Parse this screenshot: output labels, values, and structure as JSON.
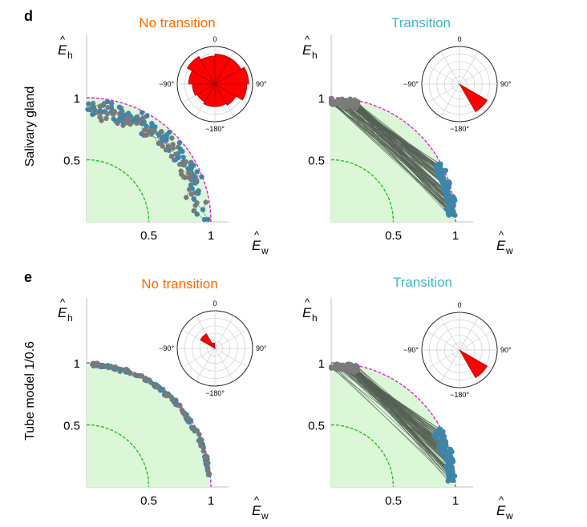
{
  "figure": {
    "rows": [
      {
        "letter": "d",
        "row_label": "Salivary gland"
      },
      {
        "letter": "e",
        "row_label": "Tube model 1/0.6"
      }
    ],
    "x_tick_labels": [
      "0.5",
      "1"
    ],
    "y_tick_labels": [
      "1",
      "0.5"
    ],
    "x_axis_symbol": "E",
    "x_axis_subscript": "w",
    "y_axis_symbol": "E",
    "y_axis_subscript": "h",
    "hat": "^",
    "polar_tick_labels": {
      "top": "0",
      "left": "−90°",
      "right": "90°",
      "bottom": "−180°"
    }
  },
  "colors": {
    "no_transition_title": "#ff6a00",
    "transition_title": "#44b3c2",
    "region_fill": "#dcf7d8",
    "inner_arc": "#21c020",
    "outer_arc": "#e020e0",
    "start_points": "#7a7a7a",
    "end_points": "#3e86a8",
    "links": "#556055",
    "rose": "#ff0000",
    "frame": "#bfbfbf"
  },
  "chart_data": [
    {
      "type": "scatter",
      "panel": "d-left",
      "title": "No transition",
      "title_color": "#ff6a00",
      "xlim": [
        0,
        1.15
      ],
      "ylim": [
        0,
        1.15
      ],
      "grid": false,
      "reference_curves": {
        "inner_quarter_circle_radius": 0.5,
        "outer_quarter_circle_radius": 1.0
      },
      "segments_from_gray_to_blue": true,
      "pair_count": 90,
      "distribution": "scattered near unit arc, many short links",
      "polar_histogram": {
        "angle_range_deg": [
          -180,
          180
        ],
        "bins_deg": [
          -180,
          -150,
          -120,
          -90,
          -60,
          -30,
          0,
          30,
          60,
          90,
          120,
          150
        ],
        "relative_counts": [
          0.6,
          0.55,
          0.6,
          0.7,
          0.85,
          0.75,
          0.8,
          0.8,
          0.9,
          0.85,
          0.65,
          0.6
        ]
      }
    },
    {
      "type": "scatter",
      "panel": "d-right",
      "title": "Transition",
      "title_color": "#44b3c2",
      "xlim": [
        0,
        1.15
      ],
      "ylim": [
        0,
        1.15
      ],
      "grid": false,
      "reference_curves": {
        "inner_quarter_circle_radius": 0.5,
        "outer_quarter_circle_radius": 1.0
      },
      "segments_from_gray_to_blue": true,
      "pair_count": 110,
      "distribution": "gray points near top-left of arc, blue points near lower-right of arc; long links",
      "polar_histogram": {
        "angle_range_deg": [
          -180,
          180
        ],
        "bins_deg": [
          120,
          150
        ],
        "relative_counts": [
          0.85,
          0.0
        ]
      }
    },
    {
      "type": "scatter",
      "panel": "e-left",
      "title": "No transition",
      "title_color": "#ff6a00",
      "xlim": [
        0,
        1.15
      ],
      "ylim": [
        0,
        1.15
      ],
      "grid": false,
      "reference_curves": {
        "inner_quarter_circle_radius": 0.5,
        "outer_quarter_circle_radius": 1.0
      },
      "segments_from_gray_to_blue": true,
      "pair_count": 90,
      "distribution": "points hugging unit arc, very short links",
      "polar_histogram": {
        "angle_range_deg": [
          -180,
          180
        ],
        "bins_deg": [
          -60,
          -30
        ],
        "relative_counts": [
          0.45,
          0.15
        ]
      }
    },
    {
      "type": "scatter",
      "panel": "e-right",
      "title": "Transition",
      "title_color": "#44b3c2",
      "xlim": [
        0,
        1.15
      ],
      "ylim": [
        0,
        1.15
      ],
      "grid": false,
      "reference_curves": {
        "inner_quarter_circle_radius": 0.5,
        "outer_quarter_circle_radius": 1.0
      },
      "segments_from_gray_to_blue": true,
      "pair_count": 110,
      "distribution": "gray points near top-left of arc, blue points near lower-right of arc; long dense links",
      "polar_histogram": {
        "angle_range_deg": [
          -180,
          180
        ],
        "bins_deg": [
          120,
          150
        ],
        "relative_counts": [
          0.85,
          0.0
        ]
      }
    }
  ]
}
